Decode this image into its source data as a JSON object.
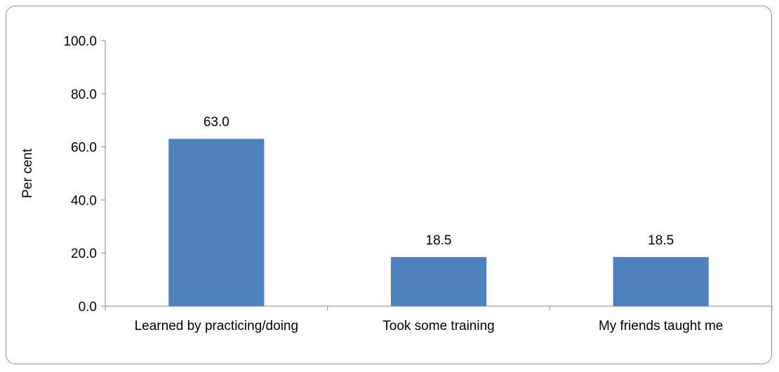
{
  "chart_data": {
    "type": "bar",
    "title": "",
    "xlabel": "",
    "ylabel": "Per cent",
    "categories": [
      "Learned by practicing/doing",
      "Took some training",
      "My friends taught me"
    ],
    "values": [
      63.0,
      18.5,
      18.5
    ],
    "data_labels": [
      "63.0",
      "18.5",
      "18.5"
    ],
    "ylim": [
      0,
      100
    ],
    "yticks": [
      0,
      20,
      40,
      60,
      80,
      100
    ],
    "ytick_labels": [
      "0.0",
      "20.0",
      "40.0",
      "60.0",
      "80.0",
      "100.0"
    ],
    "grid": false,
    "legend": "none",
    "bar_color": "#4f81bd",
    "axis_color": "#868686"
  }
}
